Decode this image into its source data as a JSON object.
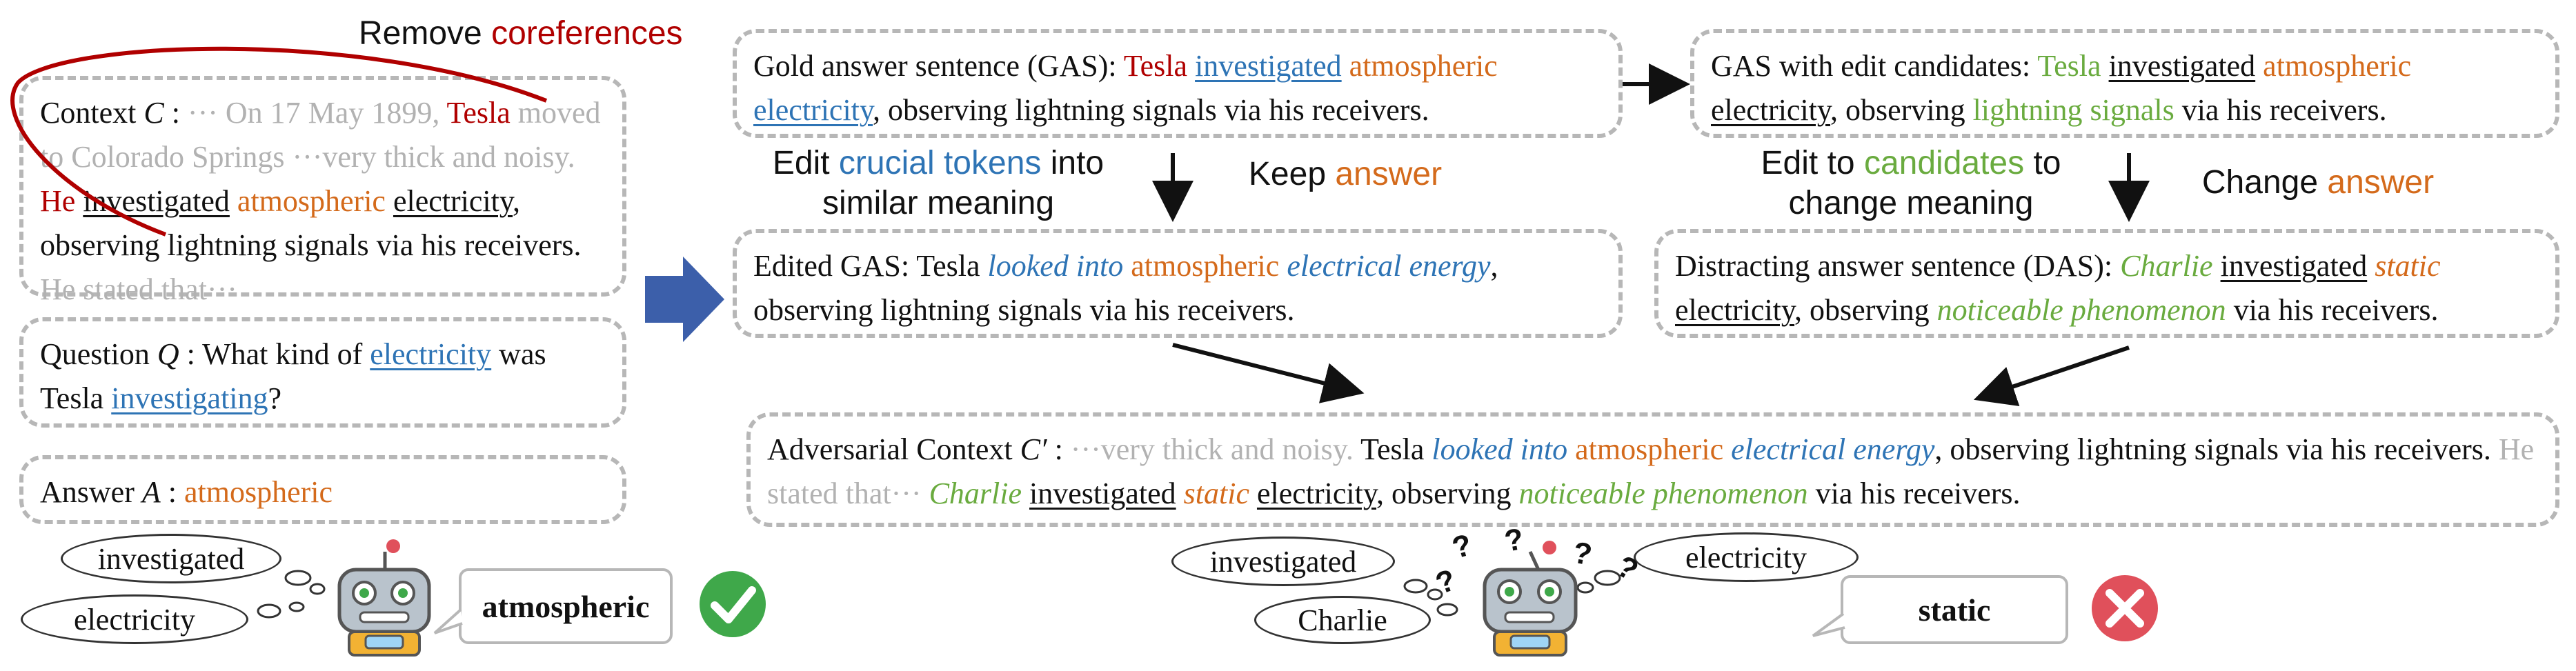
{
  "title_remove": {
    "prefix": "Remove ",
    "highlight": "coreferences"
  },
  "context": {
    "label": "Context ",
    "symbol": "C",
    "sep": " : ",
    "ellipsis1": "··· ",
    "date_text": "On 17 May 1899, ",
    "tesla": "Tesla",
    "moved": " moved to Colorado Springs ···very thick and noisy. ",
    "he": "He",
    "space": " ",
    "investigated": "investigated",
    "atmospheric": "atmospheric",
    "electricity": "electricity",
    "rest": ", observing lightning signals via his receivers.",
    "stated": " He stated that···"
  },
  "question": {
    "label": "Question ",
    "symbol": "Q",
    "text1": " : What kind of ",
    "electricity": "electricity",
    "text2": " was Tesla ",
    "investigating": "investigating",
    "text3": "?"
  },
  "answer": {
    "label": "Answer ",
    "symbol": "A",
    "sep": " : ",
    "value": "atmospheric"
  },
  "gas": {
    "prefix": "Gold answer sentence (GAS): ",
    "tesla": "Tesla",
    "investigated": "investigated",
    "atmospheric": "atmospheric",
    "electricity": "electricity",
    "rest": ", observing lightning signals via his receivers."
  },
  "gas_edit": {
    "prefix": "GAS with edit candidates: ",
    "tesla": "Tesla",
    "investigated": "investigated",
    "atmospheric": "atmospheric",
    "electricity": "electricity",
    "mid": ", observing ",
    "lightning": "lightning signals",
    "rest": " via his receivers."
  },
  "edited_gas": {
    "prefix": "Edited GAS: Tesla ",
    "looked": "looked into",
    "atmospheric": "atmospheric",
    "energy": "electrical energy",
    "rest": ", observing lightning signals via his receivers."
  },
  "das": {
    "prefix": "Distracting answer sentence (DAS): ",
    "charlie": "Charlie",
    "investigated": "investigated",
    "static": "static",
    "electricity": "electricity",
    "mid": ", observing ",
    "phenomenon": "noticeable phenomenon",
    "rest": " via his receivers."
  },
  "adversarial": {
    "label": "Adversarial Context ",
    "symbol": "C′",
    "sep": " : ",
    "grey1": "···very thick and noisy. ",
    "tesla": "Tesla ",
    "looked": "looked into",
    "atmospheric": "atmospheric",
    "energy": "electrical energy",
    "mid1": ", observing lightning signals via his receivers. ",
    "grey2": "He stated that··· ",
    "charlie": "Charlie",
    "investigated": "investigated",
    "static": "static",
    "electricity": "electricity",
    "mid2": ", observing ",
    "phenomenon": "noticeable phenomenon",
    "rest": " via his receivers."
  },
  "step_labels": {
    "edit_crucial_1": "Edit ",
    "edit_crucial_hl": "crucial tokens",
    "edit_crucial_2": " into",
    "edit_crucial_3": "similar meaning",
    "keep_1": "Keep ",
    "keep_hl": "answer",
    "edit_cand_1": "Edit to ",
    "edit_cand_hl": "candidates",
    "edit_cand_2": " to",
    "edit_cand_3": "change meaning",
    "change_1": "Change ",
    "change_hl": "answer"
  },
  "model_left": {
    "thought1": "investigated",
    "thought2": "electricity",
    "output": "atmospheric",
    "status": "correct"
  },
  "model_right": {
    "thought1": "investigated",
    "thought2": "electricity",
    "thought3": "Charlie",
    "output": "static",
    "status": "wrong"
  },
  "colors": {
    "red": "#b00000",
    "orange": "#d46a1b",
    "blue": "#2e74b5",
    "green": "#6aab3f",
    "grey": "#b2b2b2",
    "check": "#3fa84a",
    "cross": "#e0505b",
    "block_arrow": "#3c5faa"
  }
}
